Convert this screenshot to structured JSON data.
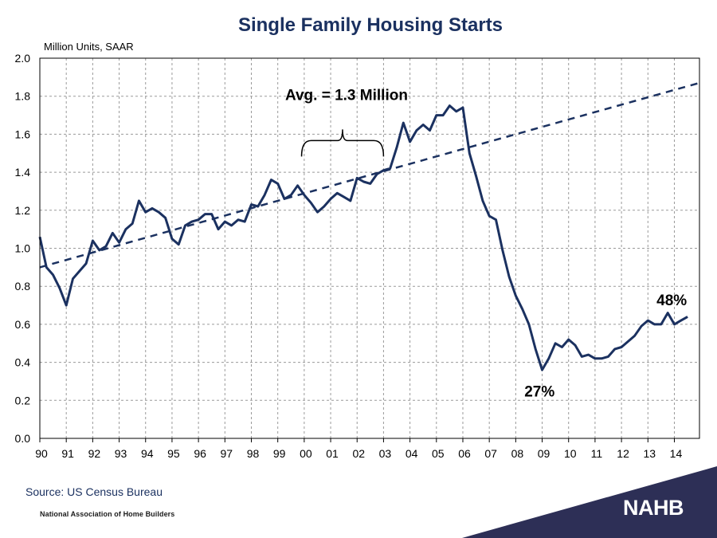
{
  "chart_data": {
    "type": "line",
    "title": "Single Family Housing Starts",
    "ylabel": "Million Units, SAAR",
    "ylim": [
      0,
      2.0
    ],
    "yticks": [
      "0.0",
      "0.2",
      "0.4",
      "0.6",
      "0.8",
      "1.0",
      "1.2",
      "1.4",
      "1.6",
      "1.8",
      "2.0"
    ],
    "xticks": [
      "90",
      "91",
      "92",
      "93",
      "94",
      "95",
      "96",
      "97",
      "98",
      "99",
      "00",
      "01",
      "02",
      "03",
      "04",
      "05",
      "06",
      "07",
      "08",
      "09",
      "10",
      "11",
      "12",
      "13",
      "14"
    ],
    "grid": true,
    "series": [
      {
        "color": "#1b3160",
        "style": "solid",
        "x": [
          1990.0,
          1990.25,
          1990.5,
          1990.75,
          1991.0,
          1991.25,
          1991.5,
          1991.75,
          1992.0,
          1992.25,
          1992.5,
          1992.75,
          1993.0,
          1993.25,
          1993.5,
          1993.75,
          1994.0,
          1994.25,
          1994.5,
          1994.75,
          1995.0,
          1995.25,
          1995.5,
          1995.75,
          1996.0,
          1996.25,
          1996.5,
          1996.75,
          1997.0,
          1997.25,
          1997.5,
          1997.75,
          1998.0,
          1998.25,
          1998.5,
          1998.75,
          1999.0,
          1999.25,
          1999.5,
          1999.75,
          2000.0,
          2000.25,
          2000.5,
          2000.75,
          2001.0,
          2001.25,
          2001.5,
          2001.75,
          2002.0,
          2002.25,
          2002.5,
          2002.75,
          2003.0,
          2003.25,
          2003.5,
          2003.75,
          2004.0,
          2004.25,
          2004.5,
          2004.75,
          2005.0,
          2005.25,
          2005.5,
          2005.75,
          2006.0,
          2006.25,
          2006.5,
          2006.75,
          2007.0,
          2007.25,
          2007.5,
          2007.75,
          2008.0,
          2008.25,
          2008.5,
          2008.75,
          2009.0,
          2009.25,
          2009.5,
          2009.75,
          2010.0,
          2010.25,
          2010.5,
          2010.75,
          2011.0,
          2011.25,
          2011.5,
          2011.75,
          2012.0,
          2012.25,
          2012.5,
          2012.75,
          2013.0,
          2013.25,
          2013.5,
          2013.75,
          2014.0,
          2014.25,
          2014.5
        ],
        "values": [
          1.06,
          0.9,
          0.86,
          0.79,
          0.7,
          0.84,
          0.88,
          0.92,
          1.04,
          0.99,
          1.01,
          1.08,
          1.03,
          1.1,
          1.13,
          1.25,
          1.19,
          1.21,
          1.19,
          1.16,
          1.05,
          1.02,
          1.12,
          1.14,
          1.15,
          1.18,
          1.18,
          1.1,
          1.14,
          1.12,
          1.15,
          1.14,
          1.23,
          1.22,
          1.28,
          1.36,
          1.34,
          1.26,
          1.28,
          1.33,
          1.28,
          1.24,
          1.19,
          1.22,
          1.26,
          1.29,
          1.27,
          1.25,
          1.37,
          1.35,
          1.34,
          1.39,
          1.41,
          1.42,
          1.53,
          1.66,
          1.56,
          1.62,
          1.65,
          1.62,
          1.7,
          1.7,
          1.75,
          1.72,
          1.74,
          1.5,
          1.38,
          1.25,
          1.17,
          1.15,
          0.99,
          0.85,
          0.75,
          0.68,
          0.6,
          0.47,
          0.36,
          0.42,
          0.5,
          0.48,
          0.52,
          0.49,
          0.43,
          0.44,
          0.42,
          0.42,
          0.43,
          0.47,
          0.48,
          0.51,
          0.54,
          0.59,
          0.62,
          0.6,
          0.6,
          0.66,
          0.6,
          0.62,
          0.64
        ]
      },
      {
        "color": "#1b3160",
        "style": "dashed",
        "x": [
          1990.0,
          2014.95
        ],
        "values": [
          0.9,
          1.87
        ]
      }
    ],
    "annotations": [
      {
        "text": "Avg. = 1.3 Million",
        "x": 2001.6,
        "y": 1.78
      },
      {
        "text": "27%",
        "x": 2008.9,
        "y": 0.22
      },
      {
        "text": "48%",
        "x": 2013.9,
        "y": 0.7
      }
    ],
    "bracket": {
      "x_start": 1999.9,
      "x_end": 2003.0,
      "y": 1.6
    }
  },
  "footer": {
    "source": "Source: US Census Bureau",
    "organization": "National Association of Home Builders",
    "logo_text": "NAHB",
    "logo_color": "#2d2f56"
  }
}
